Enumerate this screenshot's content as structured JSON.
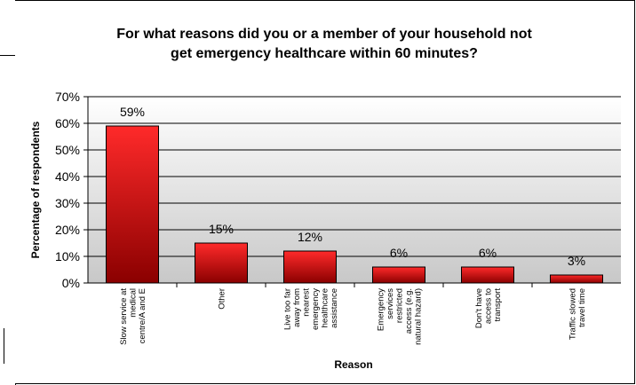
{
  "chart_data": {
    "type": "bar",
    "title_lines": [
      "For what reasons did you or a member of your household not",
      "get emergency healthcare within 60 minutes?"
    ],
    "xlabel": "Reason",
    "ylabel": "Percentage of respondents",
    "ylim": [
      0,
      70
    ],
    "y_ticks": [
      "0%",
      "10%",
      "20%",
      "30%",
      "40%",
      "50%",
      "60%",
      "70%"
    ],
    "categories": [
      [
        "Slow service at",
        "medical",
        "centre/A and E"
      ],
      [
        "Other"
      ],
      [
        "Live too far",
        "away from",
        "nearest",
        "emergency",
        "healthcare",
        "assistance"
      ],
      [
        "Emergency",
        "services",
        "restricted",
        "access (e.g.",
        "natural hazard)"
      ],
      [
        "Don't have",
        "access to",
        "transport"
      ],
      [
        "Traffic slowed",
        "travel time"
      ]
    ],
    "values": [
      59,
      15,
      12,
      6,
      6,
      3
    ],
    "data_labels": [
      "59%",
      "15%",
      "12%",
      "6%",
      "6%",
      "3%"
    ],
    "grid": true,
    "legend": "none",
    "colors": {
      "bar_top": "#ff2a2a",
      "bar_bottom": "#8a0000",
      "plot_top": "#ffffff",
      "plot_bottom": "#c8c8c8",
      "gridline": "#000000"
    }
  }
}
